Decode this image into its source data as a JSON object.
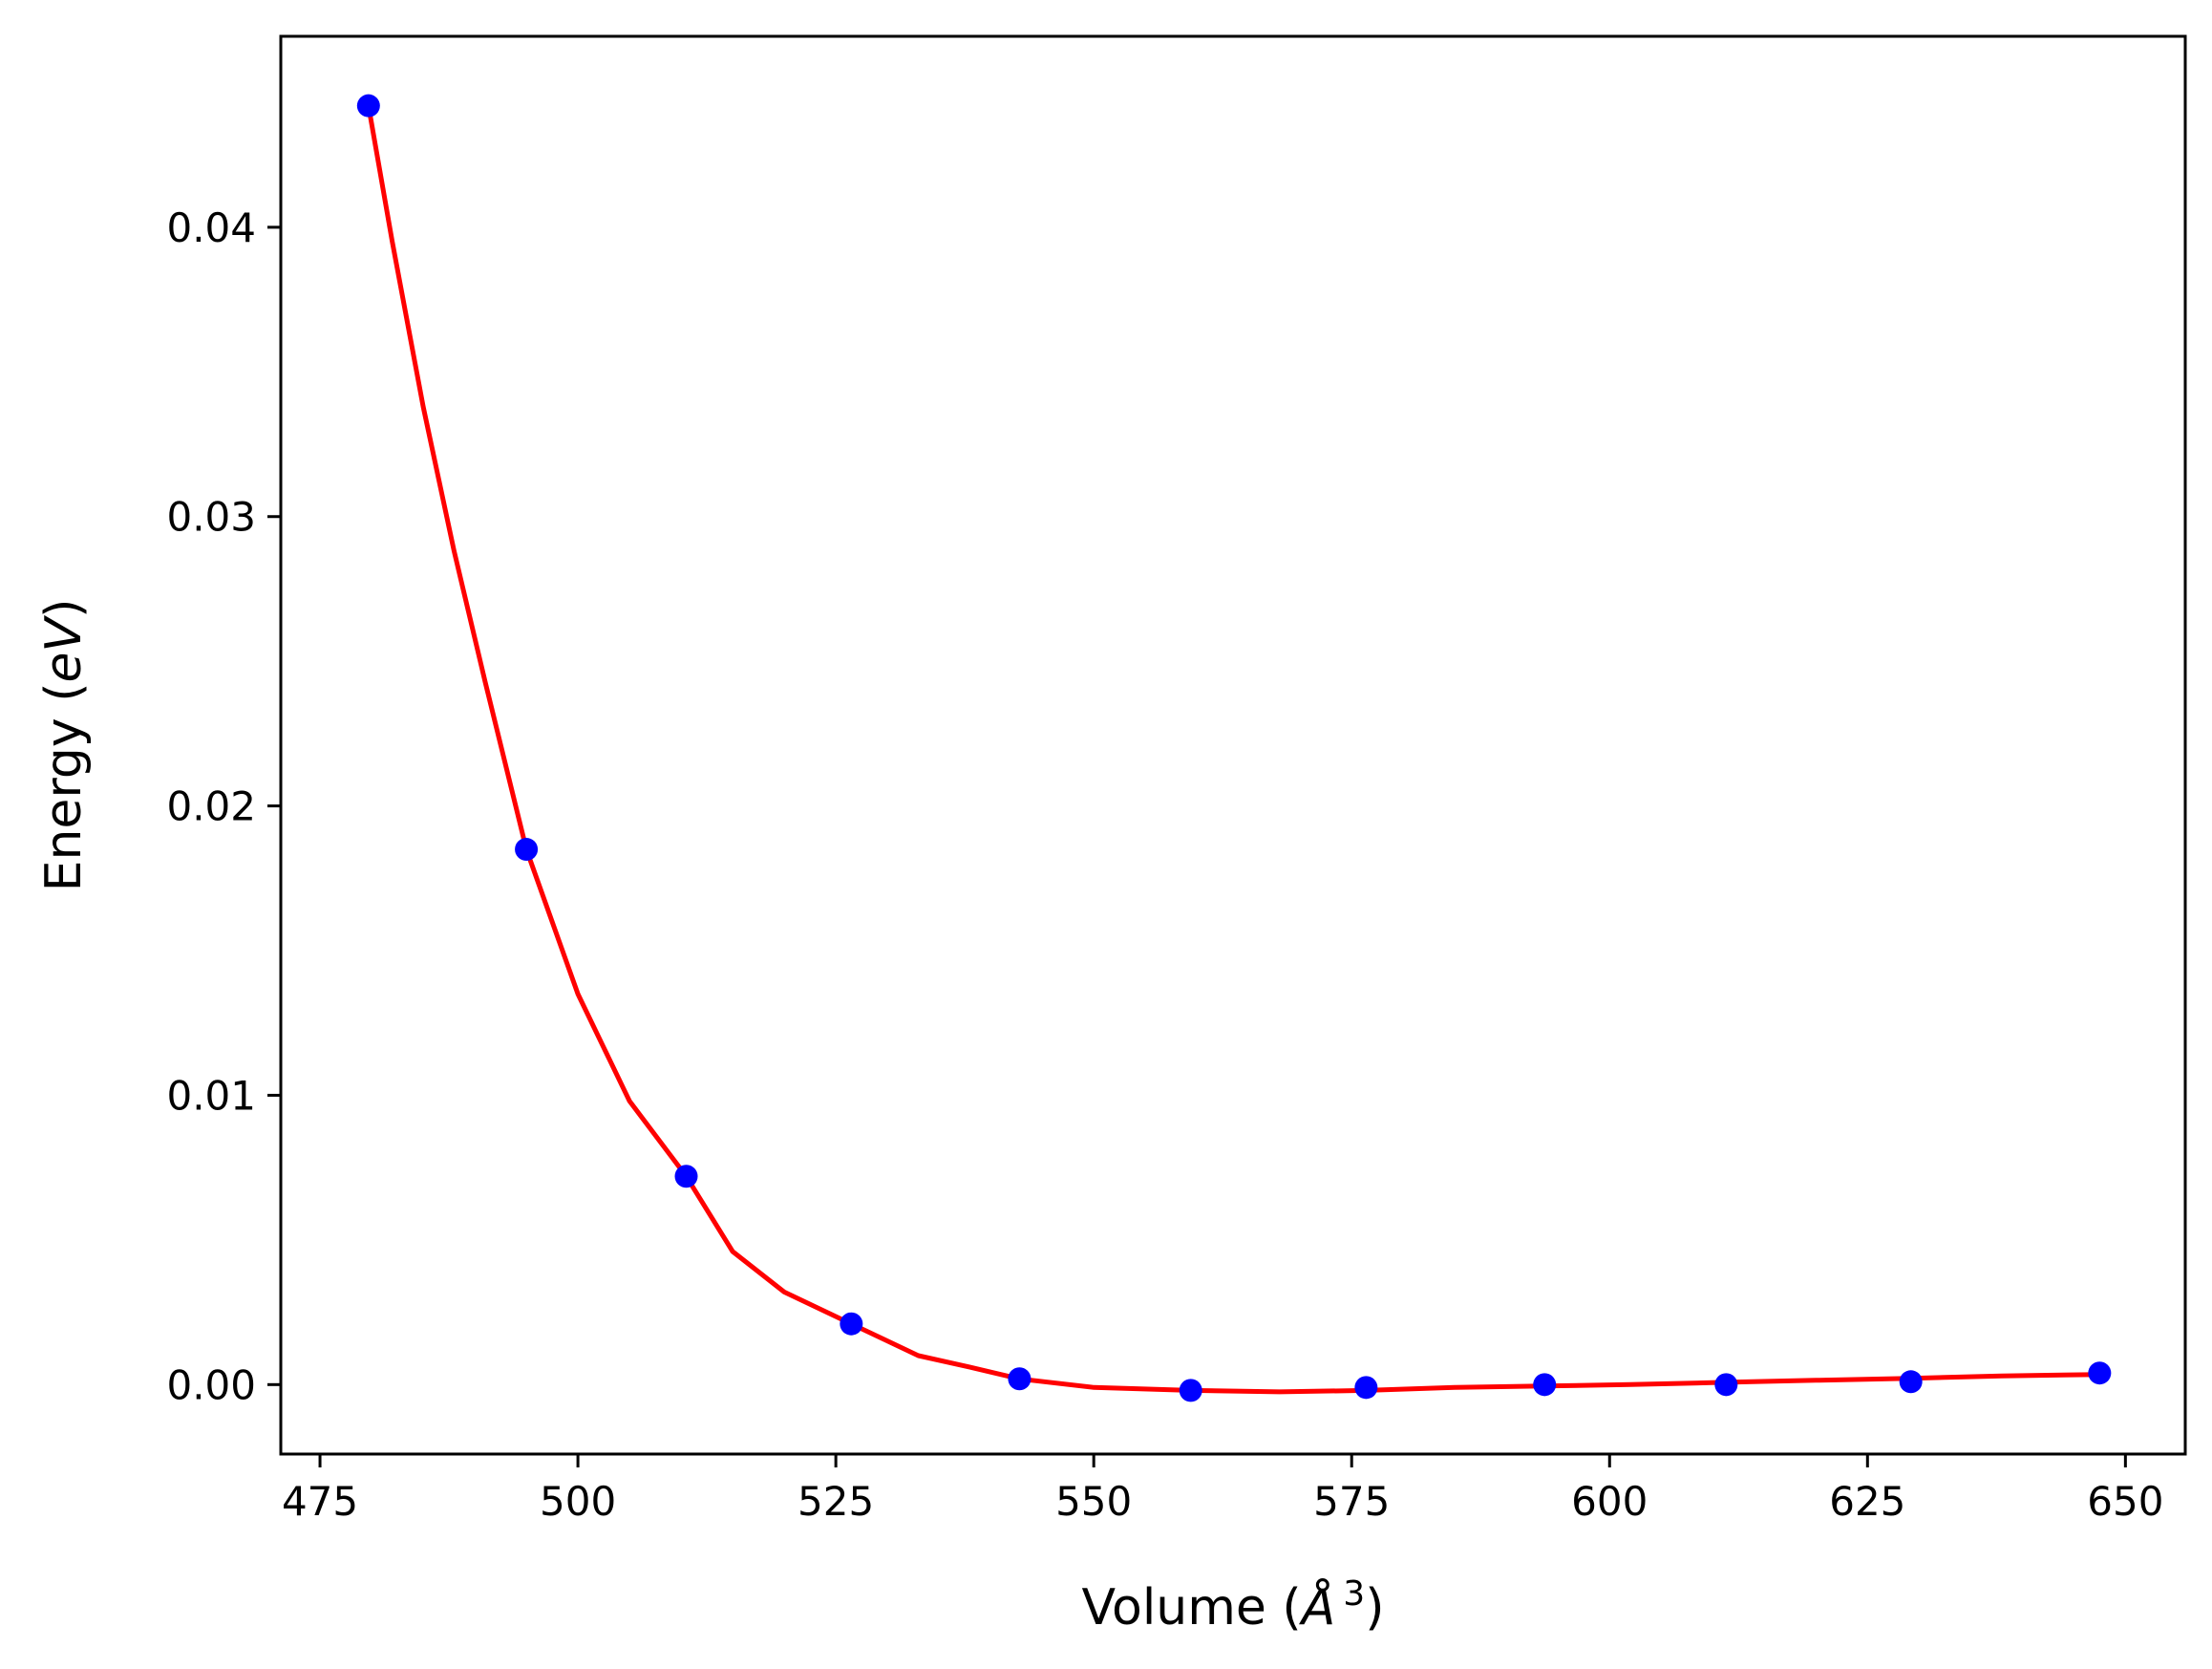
{
  "chart_data": {
    "type": "scatter",
    "title": "",
    "xlabel": {
      "prefix": "Volume (",
      "symbol": "Å",
      "sup": "3",
      "suffix": ")"
    },
    "ylabel": {
      "prefix": "Energy (",
      "symbol": "eV",
      "suffix": ")"
    },
    "xlim": [
      471.2,
      655.8
    ],
    "ylim": [
      -0.0024,
      0.0466
    ],
    "xticks": [
      475,
      500,
      525,
      550,
      575,
      600,
      625,
      650
    ],
    "xtick_labels": [
      "475",
      "500",
      "525",
      "550",
      "575",
      "600",
      "625",
      "650"
    ],
    "yticks": [
      0.0,
      0.01,
      0.02,
      0.03,
      0.04
    ],
    "ytick_labels": [
      "0.00",
      "0.01",
      "0.02",
      "0.03",
      "0.04"
    ],
    "grid": false,
    "series": [
      {
        "kind": "points",
        "color": "#0000ff",
        "points": [
          {
            "x": 479.7,
            "y": 0.0442
          },
          {
            "x": 495.0,
            "y": 0.0185
          },
          {
            "x": 510.5,
            "y": 0.0072
          },
          {
            "x": 526.5,
            "y": 0.0021
          },
          {
            "x": 542.8,
            "y": 0.0002
          },
          {
            "x": 559.4,
            "y": -0.0002
          },
          {
            "x": 576.4,
            "y": -0.0001
          },
          {
            "x": 593.7,
            "y": 0.0
          },
          {
            "x": 611.3,
            "y": 0.0
          },
          {
            "x": 629.2,
            "y": 0.0001
          },
          {
            "x": 647.5,
            "y": 0.0004
          }
        ]
      },
      {
        "kind": "fit-line",
        "color": "#ff0000",
        "points": [
          {
            "x": 479.7,
            "y": 0.0442
          },
          {
            "x": 482.0,
            "y": 0.0395
          },
          {
            "x": 485.0,
            "y": 0.0338
          },
          {
            "x": 488.0,
            "y": 0.0288
          },
          {
            "x": 491.0,
            "y": 0.0243
          },
          {
            "x": 495.0,
            "y": 0.0185
          },
          {
            "x": 500.0,
            "y": 0.0135
          },
          {
            "x": 505.0,
            "y": 0.0098
          },
          {
            "x": 510.5,
            "y": 0.0072
          },
          {
            "x": 515.0,
            "y": 0.0046
          },
          {
            "x": 520.0,
            "y": 0.0032
          },
          {
            "x": 526.5,
            "y": 0.0021
          },
          {
            "x": 533.0,
            "y": 0.001
          },
          {
            "x": 538.0,
            "y": 0.0006
          },
          {
            "x": 542.8,
            "y": 0.0002
          },
          {
            "x": 550.0,
            "y": -0.0001
          },
          {
            "x": 559.4,
            "y": -0.0002
          },
          {
            "x": 568.0,
            "y": -0.00025
          },
          {
            "x": 576.4,
            "y": -0.0002
          },
          {
            "x": 585.0,
            "y": -0.0001
          },
          {
            "x": 593.7,
            "y": -5e-05
          },
          {
            "x": 602.0,
            "y": 0.0
          },
          {
            "x": 611.3,
            "y": 8e-05
          },
          {
            "x": 620.0,
            "y": 0.00015
          },
          {
            "x": 629.2,
            "y": 0.00022
          },
          {
            "x": 638.0,
            "y": 0.0003
          },
          {
            "x": 647.5,
            "y": 0.00035
          }
        ]
      }
    ]
  }
}
